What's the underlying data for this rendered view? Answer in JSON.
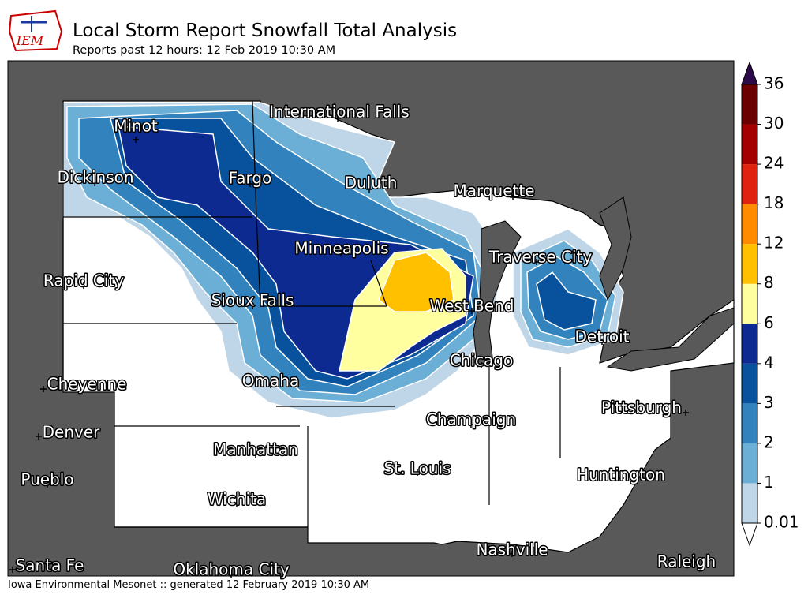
{
  "header": {
    "logo": "IEM",
    "title": "Local Storm Report Snowfall Total Analysis",
    "subtitle": "Reports past 12 hours: 12 Feb 2019 10:30 AM"
  },
  "map": {
    "cities": [
      "International Falls",
      "Minot",
      "Dickinson",
      "Fargo",
      "Duluth",
      "Marquette",
      "Minneapolis",
      "Traverse City",
      "Rapid City",
      "Sioux Falls",
      "West Bend",
      "Detroit",
      "Chicago",
      "Cheyenne",
      "Omaha",
      "Pittsburgh",
      "Champaign",
      "Denver",
      "Manhattan",
      "St. Louis",
      "Huntington",
      "Pueblo",
      "Wichita",
      "Nashville",
      "Raleigh",
      "Santa Fe",
      "Oklahoma City"
    ]
  },
  "legend": {
    "ticks": [
      0.01,
      1,
      2,
      3,
      4,
      6,
      8,
      12,
      18,
      24,
      30,
      36
    ],
    "colors": [
      "#bfd6e8",
      "#6baed6",
      "#3182bd",
      "#08519c",
      "#0d2a91",
      "#ffffa0",
      "#ffc000",
      "#ff8c00",
      "#e0230f",
      "#a50000",
      "#6b0000"
    ],
    "under_color": "#ffffff",
    "over_color": "#2d0a4a"
  },
  "footer": "Iowa Environmental Mesonet :: generated 12 February 2019 10:30 AM"
}
